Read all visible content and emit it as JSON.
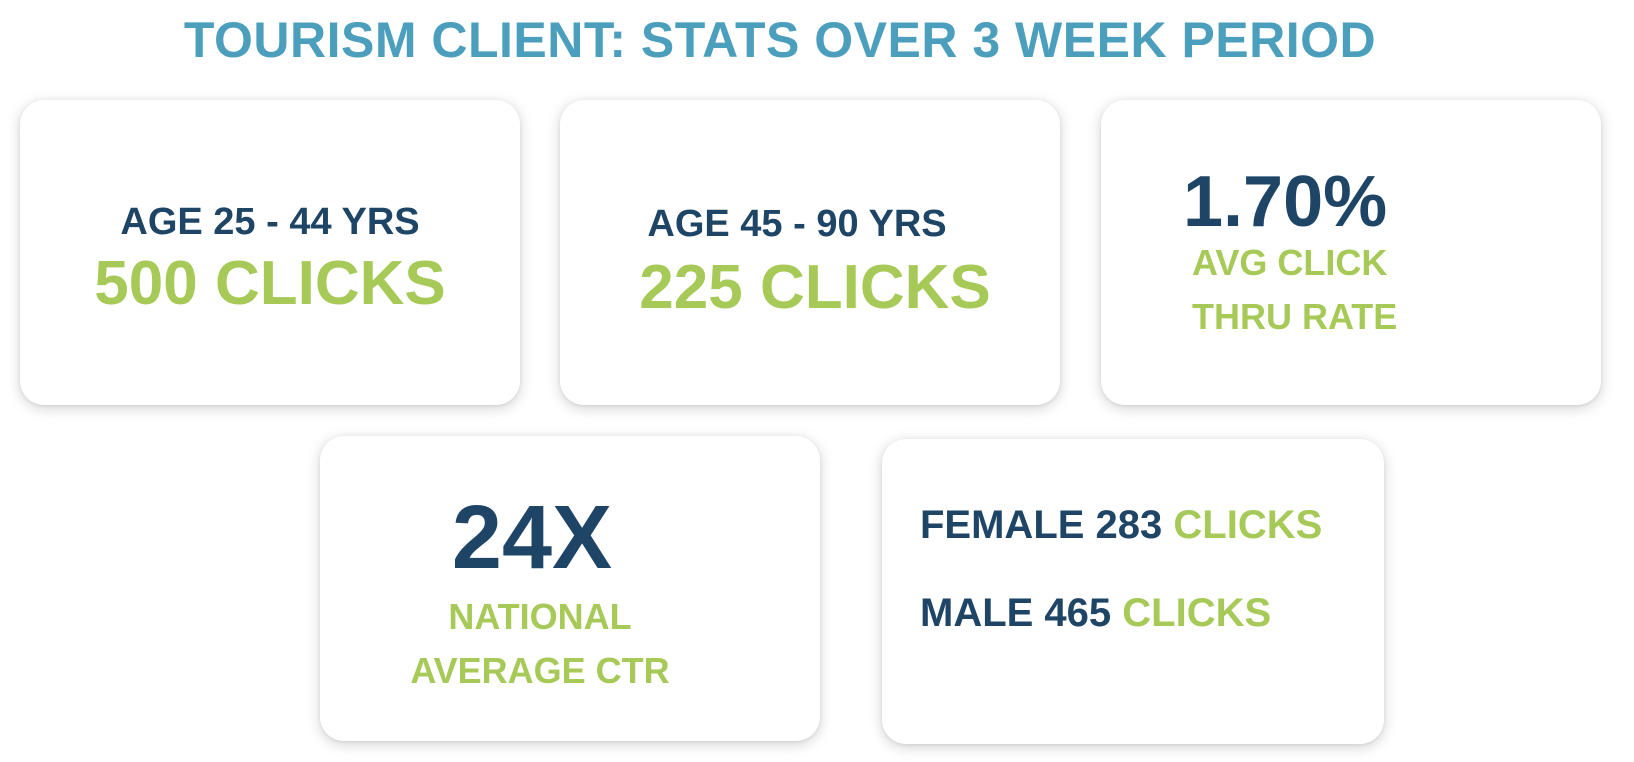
{
  "title": "TOURISM CLIENT: STATS OVER 3 WEEK PERIOD",
  "cards": {
    "age_25_44": {
      "label": "AGE 25 - 44 YRS",
      "value": "500 CLICKS"
    },
    "age_45_90": {
      "label": "AGE 45 - 90 YRS",
      "value": "225 CLICKS"
    },
    "ctr": {
      "value": "1.70%",
      "label_line1": "AVG CLICK",
      "label_line2": "THRU RATE"
    },
    "national": {
      "value": "24X",
      "label_line1": "NATIONAL",
      "label_line2": "AVERAGE CTR"
    },
    "gender": {
      "female_label": "FEMALE 283",
      "female_unit": "CLICKS",
      "male_label": "MALE 465",
      "male_unit": "CLICKS"
    }
  },
  "colors": {
    "title": "#4b9fbd",
    "navy": "#1e4466",
    "green": "#a6c957",
    "card_bg": "#ffffff"
  }
}
